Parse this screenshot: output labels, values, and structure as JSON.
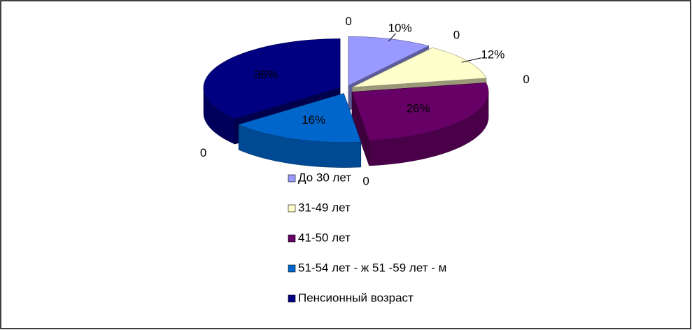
{
  "chart_data": {
    "type": "pie3d",
    "categories": [
      "До 30 лет",
      "31-49 лет",
      "41-50 лет",
      "51-54 лет - ж 51 -59 лет - м",
      "Пенсионный возраст"
    ],
    "values": [
      10,
      12,
      26,
      16,
      36
    ],
    "value_labels": [
      "10%",
      "12%",
      "26%",
      "16%",
      "36%"
    ],
    "outer_labels": [
      "0",
      "0",
      "0",
      "0",
      "0"
    ],
    "colors": [
      "#9999ff",
      "#ffffcc",
      "#660066",
      "#0066cc",
      "#000080"
    ],
    "legend": "bottom"
  }
}
